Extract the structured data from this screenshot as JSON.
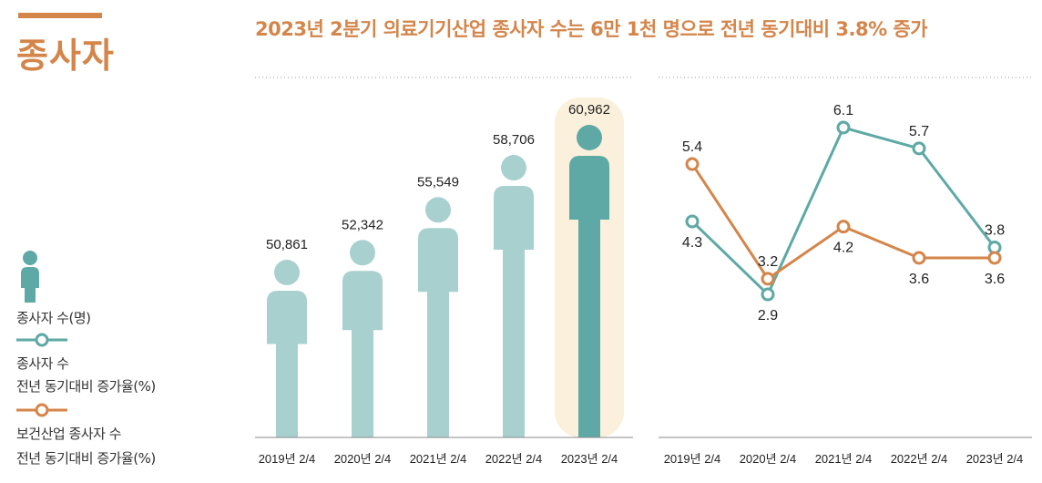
{
  "section_title": "종사자",
  "headline": "2023년 2분기 의료기기산업 종사자 수는 6만 1천 명으로 전년 동기대비 3.8% 증가",
  "legend": {
    "people_label": "종사자 수(명)",
    "teal_line_label_1": "종사자 수",
    "teal_line_label_2": "전년 동기대비 증가율(%)",
    "orange_line_label_1": "보건산업 종사자 수",
    "orange_line_label_2": "전년 동기대비 증가율(%)"
  },
  "colors": {
    "accent": "#d4854a",
    "person_light": "#a8d0cf",
    "person_dark": "#5ea9a5",
    "highlight_bg": "#faf0dc",
    "teal_line": "#5ea9a5",
    "orange_line": "#d4854a"
  },
  "chart_data": [
    {
      "type": "bar",
      "categories": [
        "2019년 2/4",
        "2020년 2/4",
        "2021년 2/4",
        "2022년 2/4",
        "2023년 2/4"
      ],
      "values": [
        50861,
        52342,
        55549,
        58706,
        60962
      ],
      "value_labels": [
        "50,861",
        "52,342",
        "55,549",
        "58,706",
        "60,962"
      ],
      "highlight_index": 4
    },
    {
      "type": "line",
      "categories": [
        "2019년 2/4",
        "2020년 2/4",
        "2021년 2/4",
        "2022년 2/4",
        "2023년 2/4"
      ],
      "series": [
        {
          "name": "종사자 수 전년 동기대비 증가율(%)",
          "values": [
            4.3,
            2.9,
            6.1,
            5.7,
            3.8
          ],
          "labels": [
            "4.3",
            "2.9",
            "6.1",
            "5.7",
            "3.8"
          ]
        },
        {
          "name": "보건산업 종사자 수 전년 동기대비 증가율(%)",
          "values": [
            5.4,
            3.2,
            4.2,
            3.6,
            3.6
          ],
          "labels": [
            "5.4",
            "3.2",
            "4.2",
            "3.6",
            "3.6"
          ]
        }
      ]
    }
  ]
}
